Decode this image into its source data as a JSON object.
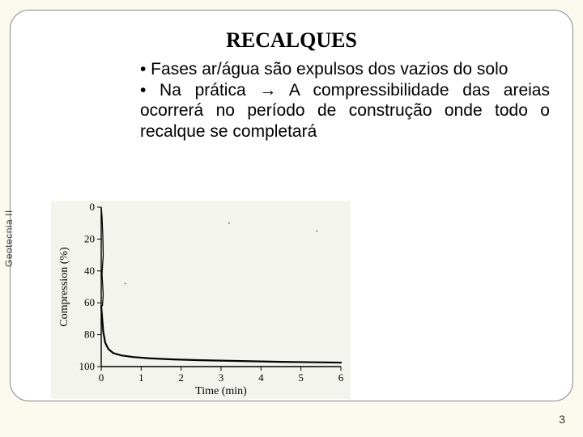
{
  "slide": {
    "title": "RECALQUES",
    "bullets": [
      "•  Fases ar/água são expulsos dos vazios do solo",
      "•     Na   prática          →     A compressibilidade    das    areias ocorrerá no período de construção onde todo o recalque se completará"
    ],
    "sidebar_label": "Geotecnia II",
    "page_number": "3"
  },
  "chart": {
    "type": "line",
    "xlabel": "Time (min)",
    "ylabel": "Compression (%)",
    "xlim": [
      0,
      6
    ],
    "ylim_top": 0,
    "ylim_bottom": 100,
    "yticks": [
      0,
      20,
      40,
      60,
      80,
      100
    ],
    "xticks": [
      0,
      1,
      2,
      3,
      4,
      5,
      6
    ],
    "line_color": "#000000",
    "line_width": 2.2,
    "axis_color": "#000000",
    "tick_fontsize": 13,
    "label_fontsize": 14,
    "background": "#f4f4ee",
    "initial_scatter": [
      {
        "x": 0.0,
        "y": 0
      },
      {
        "x": 0.02,
        "y": 6
      },
      {
        "x": 0.04,
        "y": 18
      },
      {
        "x": 0.05,
        "y": 30
      },
      {
        "x": 0.02,
        "y": 42
      },
      {
        "x": 0.05,
        "y": 55
      },
      {
        "x": 0.03,
        "y": 62
      }
    ],
    "points": [
      {
        "x": 0.0,
        "y": 62
      },
      {
        "x": 0.05,
        "y": 78
      },
      {
        "x": 0.1,
        "y": 85
      },
      {
        "x": 0.18,
        "y": 89
      },
      {
        "x": 0.3,
        "y": 91.5
      },
      {
        "x": 0.5,
        "y": 93
      },
      {
        "x": 0.8,
        "y": 94
      },
      {
        "x": 1.2,
        "y": 94.8
      },
      {
        "x": 1.8,
        "y": 95.5
      },
      {
        "x": 2.5,
        "y": 96
      },
      {
        "x": 3.5,
        "y": 96.5
      },
      {
        "x": 4.5,
        "y": 97
      },
      {
        "x": 6.0,
        "y": 97.5
      }
    ]
  }
}
